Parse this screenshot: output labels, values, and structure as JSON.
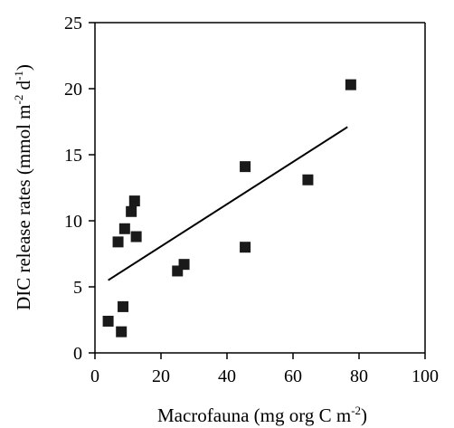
{
  "chart_data": {
    "type": "scatter",
    "title": "",
    "xlabel": {
      "main": "Macrofauna (mg org C m",
      "sup": "-2",
      "end": ")"
    },
    "ylabel": {
      "part1": "DIC release rates (mmol m",
      "sup1": "-2",
      "part2": " d",
      "sup2": "-1",
      "end": ")"
    },
    "xlim": [
      0,
      100
    ],
    "ylim": [
      0,
      25
    ],
    "x_ticks": [
      0,
      20,
      40,
      60,
      80,
      100
    ],
    "y_ticks": [
      0,
      5,
      10,
      15,
      20,
      25
    ],
    "grid": false,
    "series": [
      {
        "marker": "square",
        "color": "#1a1a1a",
        "points": [
          {
            "x": 4,
            "y": 2.4
          },
          {
            "x": 7,
            "y": 8.4
          },
          {
            "x": 8,
            "y": 1.6
          },
          {
            "x": 8.5,
            "y": 3.5
          },
          {
            "x": 9,
            "y": 9.4
          },
          {
            "x": 11,
            "y": 10.7
          },
          {
            "x": 12,
            "y": 11.5
          },
          {
            "x": 12.5,
            "y": 8.8
          },
          {
            "x": 25,
            "y": 6.2
          },
          {
            "x": 27,
            "y": 6.7
          },
          {
            "x": 45.5,
            "y": 14.1
          },
          {
            "x": 45.5,
            "y": 8.0
          },
          {
            "x": 64.5,
            "y": 13.1
          },
          {
            "x": 77.5,
            "y": 20.3
          }
        ]
      }
    ],
    "trendline": {
      "x": [
        4,
        76.5
      ],
      "y": [
        5.5,
        17.1
      ],
      "color": "#000000"
    }
  }
}
